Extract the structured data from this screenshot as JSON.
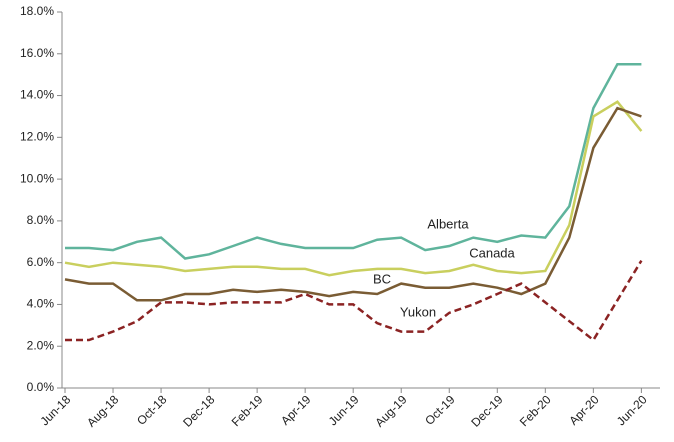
{
  "chart_data": {
    "type": "line",
    "categories": [
      "Jun-18",
      null,
      "Aug-18",
      null,
      "Oct-18",
      null,
      "Dec-18",
      null,
      "Feb-19",
      null,
      "Apr-19",
      null,
      "Jun-19",
      null,
      "Aug-19",
      null,
      "Oct-19",
      null,
      "Dec-19",
      null,
      "Feb-20",
      null,
      "Apr-20",
      null,
      "Jun-20"
    ],
    "series": [
      {
        "name": "Alberta",
        "color": "#5fb49c",
        "style": "solid",
        "values": [
          6.7,
          6.7,
          6.6,
          7.0,
          7.2,
          6.2,
          6.4,
          6.8,
          7.2,
          6.9,
          6.7,
          6.7,
          6.7,
          7.1,
          7.2,
          6.6,
          6.8,
          7.2,
          7.0,
          7.3,
          7.2,
          8.7,
          13.4,
          15.5,
          15.5
        ]
      },
      {
        "name": "Canada",
        "color": "#c9cf5e",
        "style": "solid",
        "values": [
          6.0,
          5.8,
          6.0,
          5.9,
          5.8,
          5.6,
          5.7,
          5.8,
          5.8,
          5.7,
          5.7,
          5.4,
          5.6,
          5.7,
          5.7,
          5.5,
          5.6,
          5.9,
          5.6,
          5.5,
          5.6,
          7.8,
          13.0,
          13.7,
          12.3
        ]
      },
      {
        "name": "BC",
        "color": "#7a5c34",
        "style": "solid",
        "values": [
          5.2,
          5.0,
          5.0,
          4.2,
          4.2,
          4.5,
          4.5,
          4.7,
          4.6,
          4.7,
          4.6,
          4.4,
          4.6,
          4.5,
          5.0,
          4.8,
          4.8,
          5.0,
          4.8,
          4.5,
          5.0,
          7.2,
          11.5,
          13.4,
          13.0
        ]
      },
      {
        "name": "Yukon",
        "color": "#8b2323",
        "style": "dashed",
        "values": [
          2.3,
          2.3,
          2.7,
          3.2,
          4.1,
          4.1,
          4.0,
          4.1,
          4.1,
          4.1,
          4.5,
          4.0,
          4.0,
          3.1,
          2.7,
          2.7,
          3.6,
          4.0,
          4.5,
          5.0,
          4.1,
          3.2,
          2.3,
          4.2,
          6.1
        ]
      }
    ],
    "ylim": [
      0,
      18
    ],
    "yticks": [
      {
        "value": 0,
        "label": "0.0%"
      },
      {
        "value": 2,
        "label": "2.0%"
      },
      {
        "value": 4,
        "label": "4.0%"
      },
      {
        "value": 6,
        "label": "6.0%"
      },
      {
        "value": 8,
        "label": "8.0%"
      },
      {
        "value": 10,
        "label": "10.0%"
      },
      {
        "value": 12,
        "label": "12.0%"
      },
      {
        "value": 14,
        "label": "14.0%"
      },
      {
        "value": 16,
        "label": "16.0%"
      },
      {
        "value": 18,
        "label": "18.0%"
      }
    ]
  }
}
